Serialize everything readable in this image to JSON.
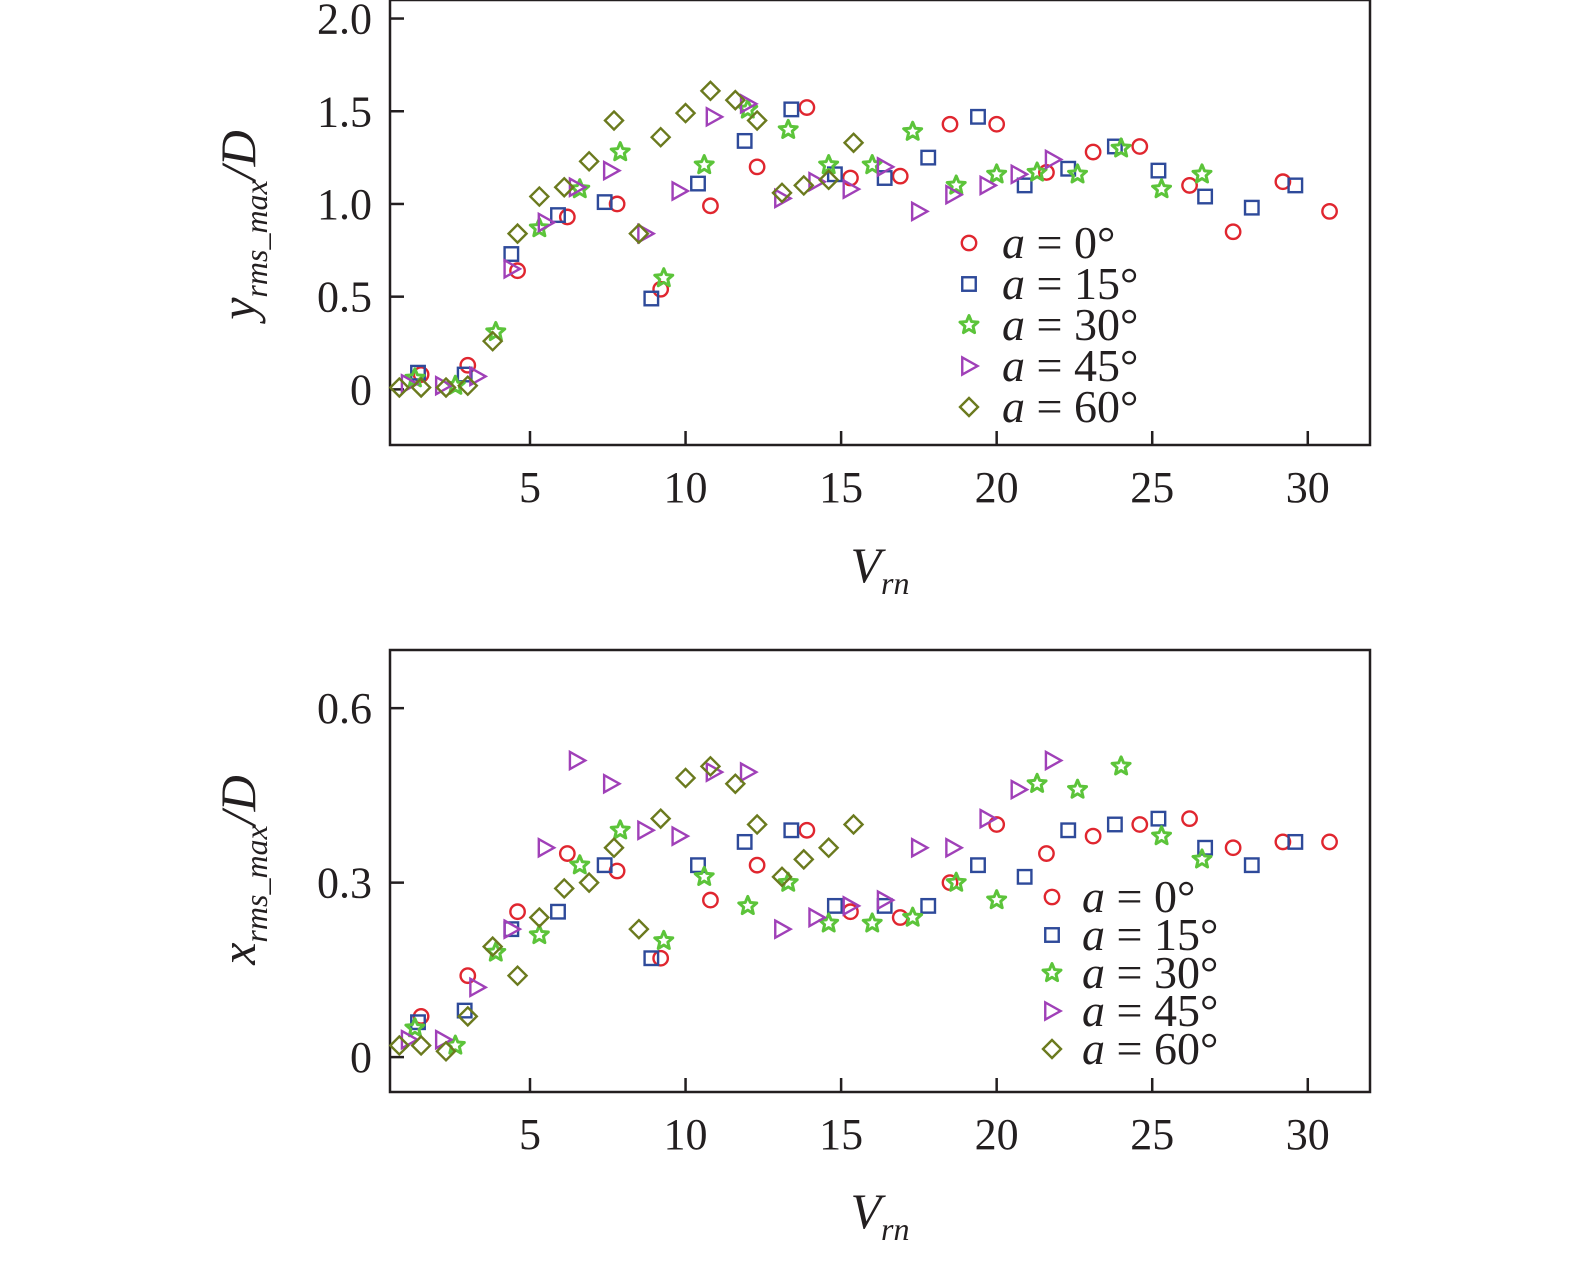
{
  "colors": {
    "a0": "#e0262f",
    "a15": "#2e4a9a",
    "a30": "#5cc43a",
    "a45": "#a040b8",
    "a60": "#6b7a1e",
    "axis": "#231f20"
  },
  "chart_data": [
    {
      "type": "scatter",
      "xlabel": {
        "main": "V",
        "sub": "rn"
      },
      "ylabel": {
        "main": "y",
        "sub": "rms_max",
        "suffix": "/D"
      },
      "xlim": [
        0.5,
        32
      ],
      "ylim": [
        -0.3,
        2.1
      ],
      "xticks": [
        {
          "value": 5,
          "label": "5"
        },
        {
          "value": 10,
          "label": "10"
        },
        {
          "value": 15,
          "label": "15"
        },
        {
          "value": 20,
          "label": "20"
        },
        {
          "value": 25,
          "label": "25"
        },
        {
          "value": 30,
          "label": "30"
        }
      ],
      "yticks": [
        {
          "value": 0,
          "label": "0"
        },
        {
          "value": 0.5,
          "label": "0.5"
        },
        {
          "value": 1.0,
          "label": "1.0"
        },
        {
          "value": 1.5,
          "label": "1.5"
        },
        {
          "value": 2.0,
          "label": "2.0"
        }
      ],
      "legend_position": "right",
      "series": [
        {
          "name": "a = 0°",
          "marker": "circle",
          "color_key": "a0",
          "points": [
            [
              1.5,
              0.08
            ],
            [
              3.0,
              0.13
            ],
            [
              4.6,
              0.64
            ],
            [
              6.2,
              0.93
            ],
            [
              7.8,
              1.0
            ],
            [
              9.2,
              0.54
            ],
            [
              10.8,
              0.99
            ],
            [
              12.3,
              1.2
            ],
            [
              13.9,
              1.52
            ],
            [
              15.3,
              1.14
            ],
            [
              16.9,
              1.15
            ],
            [
              18.5,
              1.43
            ],
            [
              20.0,
              1.43
            ],
            [
              21.6,
              1.17
            ],
            [
              23.1,
              1.28
            ],
            [
              24.6,
              1.31
            ],
            [
              26.2,
              1.1
            ],
            [
              27.6,
              0.85
            ],
            [
              29.2,
              1.12
            ],
            [
              30.7,
              0.96
            ]
          ]
        },
        {
          "name": "a = 15°",
          "marker": "square",
          "color_key": "a15",
          "points": [
            [
              1.4,
              0.09
            ],
            [
              2.9,
              0.08
            ],
            [
              4.4,
              0.73
            ],
            [
              5.9,
              0.94
            ],
            [
              7.4,
              1.01
            ],
            [
              8.9,
              0.49
            ],
            [
              10.4,
              1.11
            ],
            [
              11.9,
              1.34
            ],
            [
              13.4,
              1.51
            ],
            [
              14.8,
              1.16
            ],
            [
              16.4,
              1.14
            ],
            [
              17.8,
              1.25
            ],
            [
              19.4,
              1.47
            ],
            [
              20.9,
              1.1
            ],
            [
              22.3,
              1.19
            ],
            [
              23.8,
              1.31
            ],
            [
              25.2,
              1.18
            ],
            [
              26.7,
              1.04
            ],
            [
              28.2,
              0.98
            ],
            [
              29.6,
              1.1
            ]
          ]
        },
        {
          "name": "a = 30°",
          "marker": "star",
          "color_key": "a30",
          "points": [
            [
              1.3,
              0.06
            ],
            [
              2.6,
              0.02
            ],
            [
              3.9,
              0.31
            ],
            [
              5.3,
              0.87
            ],
            [
              6.6,
              1.08
            ],
            [
              7.9,
              1.28
            ],
            [
              9.3,
              0.6
            ],
            [
              10.6,
              1.21
            ],
            [
              12.0,
              1.51
            ],
            [
              13.3,
              1.4
            ],
            [
              14.6,
              1.21
            ],
            [
              16.0,
              1.21
            ],
            [
              17.3,
              1.39
            ],
            [
              18.7,
              1.1
            ],
            [
              20.0,
              1.16
            ],
            [
              21.3,
              1.17
            ],
            [
              22.6,
              1.16
            ],
            [
              24.0,
              1.3
            ],
            [
              25.3,
              1.08
            ],
            [
              26.6,
              1.16
            ]
          ]
        },
        {
          "name": "a = 45°",
          "marker": "triangle",
          "color_key": "a45",
          "points": [
            [
              1.1,
              0.03
            ],
            [
              2.2,
              0.02
            ],
            [
              3.3,
              0.07
            ],
            [
              4.4,
              0.65
            ],
            [
              5.5,
              0.9
            ],
            [
              6.5,
              1.09
            ],
            [
              7.6,
              1.18
            ],
            [
              8.7,
              0.84
            ],
            [
              9.8,
              1.07
            ],
            [
              10.9,
              1.47
            ],
            [
              12.0,
              1.54
            ],
            [
              13.1,
              1.03
            ],
            [
              14.2,
              1.12
            ],
            [
              15.3,
              1.08
            ],
            [
              16.4,
              1.2
            ],
            [
              17.5,
              0.96
            ],
            [
              18.6,
              1.05
            ],
            [
              19.7,
              1.1
            ],
            [
              20.7,
              1.16
            ],
            [
              21.8,
              1.24
            ]
          ]
        },
        {
          "name": "a = 60°",
          "marker": "diamond",
          "color_key": "a60",
          "points": [
            [
              0.8,
              0.01
            ],
            [
              1.5,
              0.01
            ],
            [
              2.3,
              0.01
            ],
            [
              3.0,
              0.02
            ],
            [
              3.8,
              0.26
            ],
            [
              4.6,
              0.84
            ],
            [
              5.3,
              1.04
            ],
            [
              6.1,
              1.09
            ],
            [
              6.9,
              1.23
            ],
            [
              7.7,
              1.45
            ],
            [
              8.5,
              0.84
            ],
            [
              9.2,
              1.36
            ],
            [
              10.0,
              1.49
            ],
            [
              10.8,
              1.61
            ],
            [
              11.6,
              1.56
            ],
            [
              12.3,
              1.45
            ],
            [
              13.1,
              1.06
            ],
            [
              13.8,
              1.1
            ],
            [
              14.6,
              1.13
            ],
            [
              15.4,
              1.33
            ]
          ]
        }
      ]
    },
    {
      "type": "scatter",
      "xlabel": {
        "main": "V",
        "sub": "rn"
      },
      "ylabel": {
        "main": "x",
        "sub": "rms_max",
        "suffix": "/D"
      },
      "xlim": [
        0.5,
        32
      ],
      "ylim": [
        -0.06,
        0.7
      ],
      "xticks": [
        {
          "value": 5,
          "label": "5"
        },
        {
          "value": 10,
          "label": "10"
        },
        {
          "value": 15,
          "label": "15"
        },
        {
          "value": 20,
          "label": "20"
        },
        {
          "value": 25,
          "label": "25"
        },
        {
          "value": 30,
          "label": "30"
        }
      ],
      "yticks": [
        {
          "value": 0,
          "label": "0"
        },
        {
          "value": 0.3,
          "label": "0.3"
        },
        {
          "value": 0.6,
          "label": "0.6"
        }
      ],
      "legend_position": "right",
      "series": [
        {
          "name": "a = 0°",
          "marker": "circle",
          "color_key": "a0",
          "points": [
            [
              1.5,
              0.07
            ],
            [
              3.0,
              0.14
            ],
            [
              4.6,
              0.25
            ],
            [
              6.2,
              0.35
            ],
            [
              7.8,
              0.32
            ],
            [
              9.2,
              0.17
            ],
            [
              10.8,
              0.27
            ],
            [
              12.3,
              0.33
            ],
            [
              13.9,
              0.39
            ],
            [
              15.3,
              0.25
            ],
            [
              16.9,
              0.24
            ],
            [
              18.5,
              0.3
            ],
            [
              20.0,
              0.4
            ],
            [
              21.6,
              0.35
            ],
            [
              23.1,
              0.38
            ],
            [
              24.6,
              0.4
            ],
            [
              26.2,
              0.41
            ],
            [
              27.6,
              0.36
            ],
            [
              29.2,
              0.37
            ],
            [
              30.7,
              0.37
            ]
          ]
        },
        {
          "name": "a = 15°",
          "marker": "square",
          "color_key": "a15",
          "points": [
            [
              1.4,
              0.06
            ],
            [
              2.9,
              0.08
            ],
            [
              4.4,
              0.22
            ],
            [
              5.9,
              0.25
            ],
            [
              7.4,
              0.33
            ],
            [
              8.9,
              0.17
            ],
            [
              10.4,
              0.33
            ],
            [
              11.9,
              0.37
            ],
            [
              13.4,
              0.39
            ],
            [
              14.8,
              0.26
            ],
            [
              16.4,
              0.26
            ],
            [
              17.8,
              0.26
            ],
            [
              19.4,
              0.33
            ],
            [
              20.9,
              0.31
            ],
            [
              22.3,
              0.39
            ],
            [
              23.8,
              0.4
            ],
            [
              25.2,
              0.41
            ],
            [
              26.7,
              0.36
            ],
            [
              28.2,
              0.33
            ],
            [
              29.6,
              0.37
            ]
          ]
        },
        {
          "name": "a = 30°",
          "marker": "star",
          "color_key": "a30",
          "points": [
            [
              1.3,
              0.05
            ],
            [
              2.6,
              0.02
            ],
            [
              3.9,
              0.18
            ],
            [
              5.3,
              0.21
            ],
            [
              6.6,
              0.33
            ],
            [
              7.9,
              0.39
            ],
            [
              9.3,
              0.2
            ],
            [
              10.6,
              0.31
            ],
            [
              12.0,
              0.26
            ],
            [
              13.3,
              0.3
            ],
            [
              14.6,
              0.23
            ],
            [
              16.0,
              0.23
            ],
            [
              17.3,
              0.24
            ],
            [
              18.7,
              0.3
            ],
            [
              20.0,
              0.27
            ],
            [
              21.3,
              0.47
            ],
            [
              22.6,
              0.46
            ],
            [
              24.0,
              0.5
            ],
            [
              25.3,
              0.38
            ],
            [
              26.6,
              0.34
            ]
          ]
        },
        {
          "name": "a = 45°",
          "marker": "triangle",
          "color_key": "a45",
          "points": [
            [
              1.1,
              0.03
            ],
            [
              2.2,
              0.03
            ],
            [
              3.3,
              0.12
            ],
            [
              4.4,
              0.22
            ],
            [
              5.5,
              0.36
            ],
            [
              6.5,
              0.51
            ],
            [
              7.6,
              0.47
            ],
            [
              8.7,
              0.39
            ],
            [
              9.8,
              0.38
            ],
            [
              10.9,
              0.49
            ],
            [
              12.0,
              0.49
            ],
            [
              13.1,
              0.22
            ],
            [
              14.2,
              0.24
            ],
            [
              15.3,
              0.26
            ],
            [
              16.4,
              0.27
            ],
            [
              17.5,
              0.36
            ],
            [
              18.6,
              0.36
            ],
            [
              19.7,
              0.41
            ],
            [
              20.7,
              0.46
            ],
            [
              21.8,
              0.51
            ]
          ]
        },
        {
          "name": "a = 60°",
          "marker": "diamond",
          "color_key": "a60",
          "points": [
            [
              0.8,
              0.02
            ],
            [
              1.5,
              0.02
            ],
            [
              2.3,
              0.01
            ],
            [
              3.0,
              0.07
            ],
            [
              3.8,
              0.19
            ],
            [
              4.6,
              0.14
            ],
            [
              5.3,
              0.24
            ],
            [
              6.1,
              0.29
            ],
            [
              6.9,
              0.3
            ],
            [
              7.7,
              0.36
            ],
            [
              8.5,
              0.22
            ],
            [
              9.2,
              0.41
            ],
            [
              10.0,
              0.48
            ],
            [
              10.8,
              0.5
            ],
            [
              11.6,
              0.47
            ],
            [
              12.3,
              0.4
            ],
            [
              13.1,
              0.31
            ],
            [
              13.8,
              0.34
            ],
            [
              14.6,
              0.36
            ],
            [
              15.4,
              0.4
            ]
          ]
        }
      ]
    }
  ]
}
